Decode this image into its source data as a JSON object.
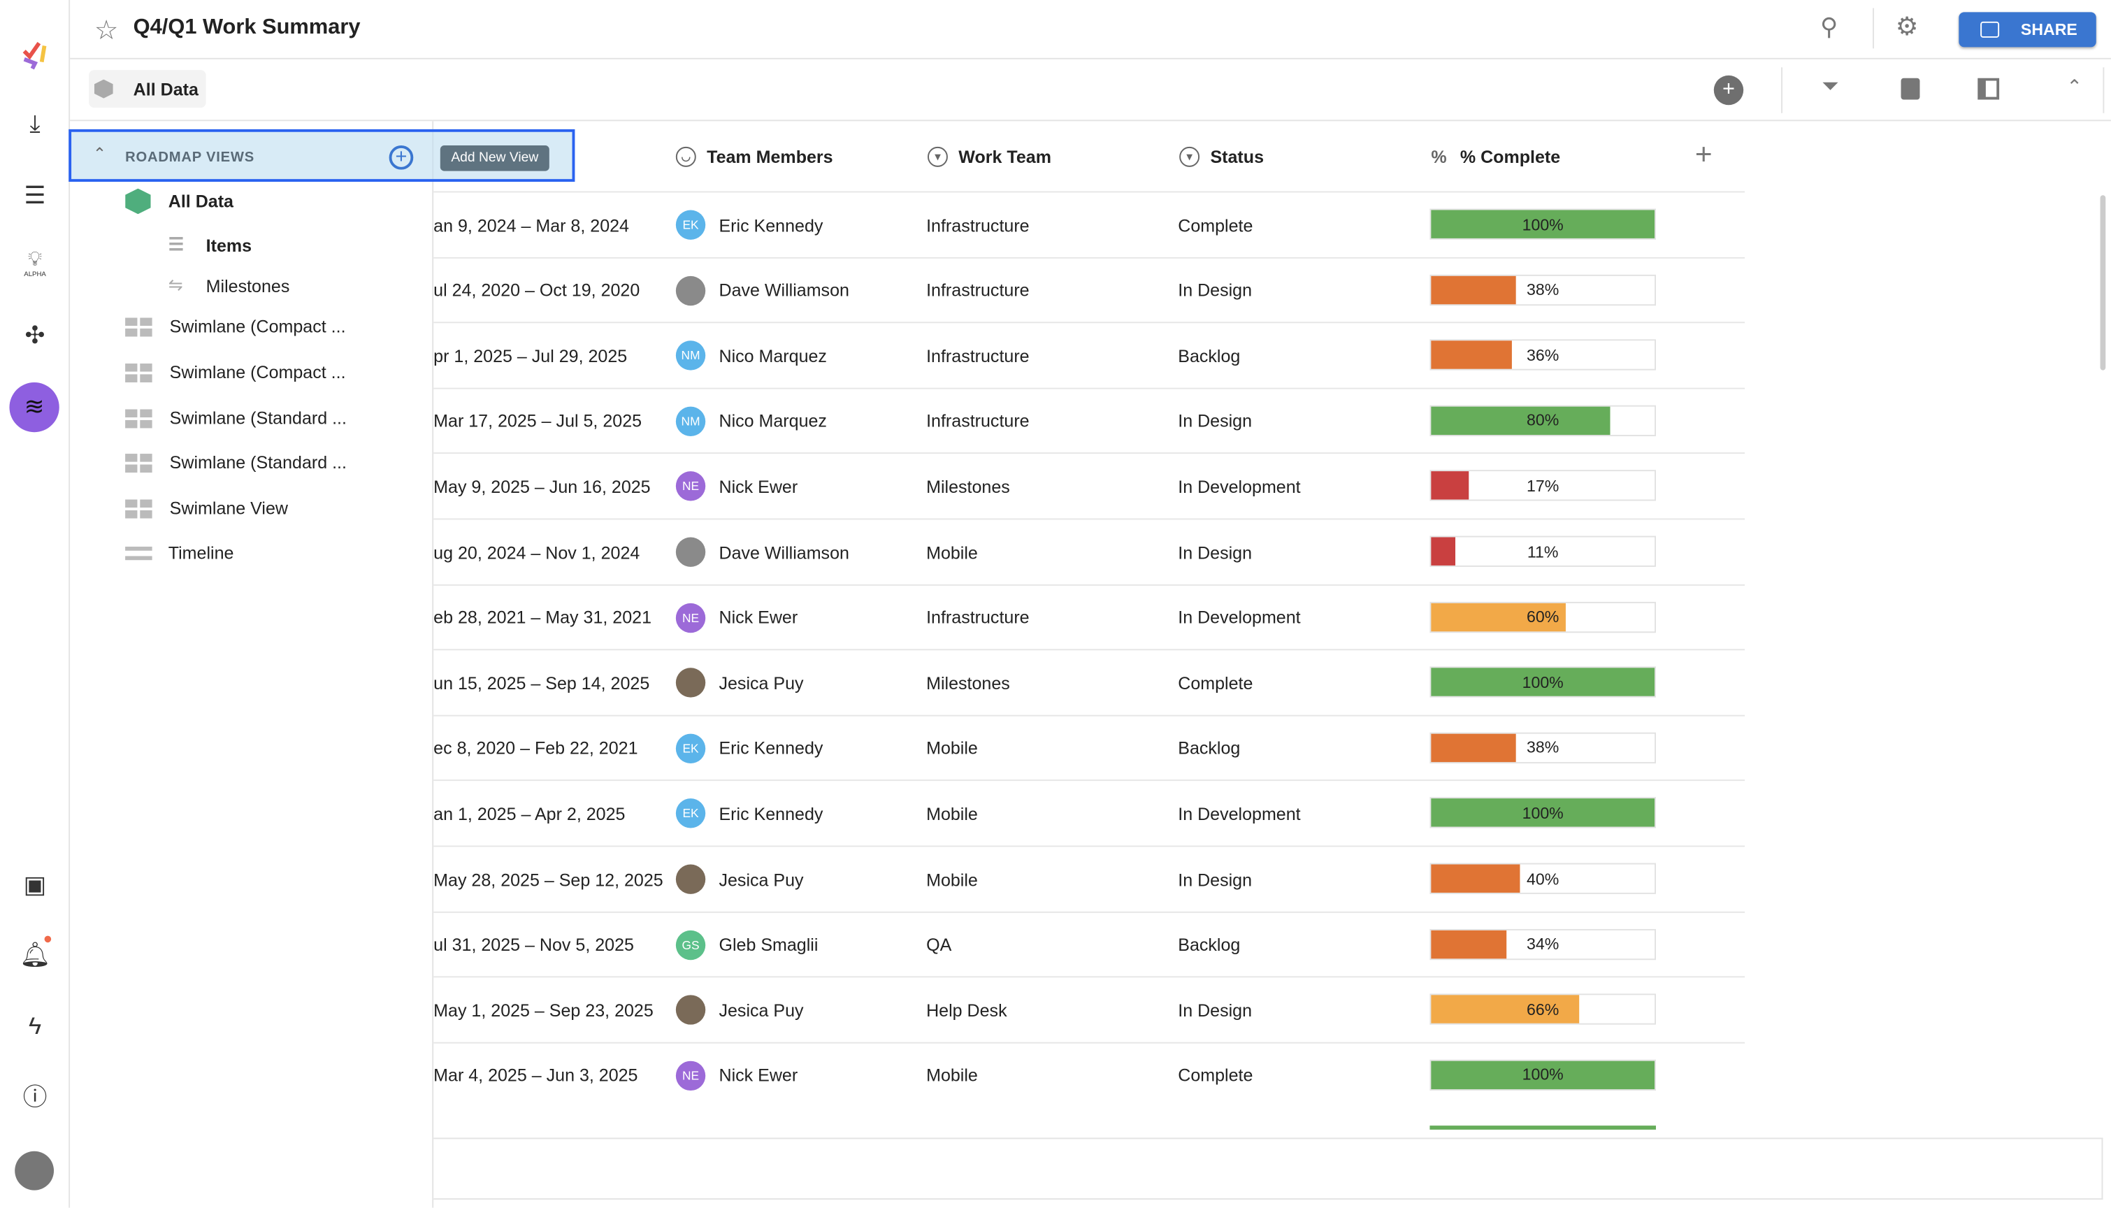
{
  "header": {
    "title": "Q4/Q1 Work Summary",
    "share_label": "SHARE"
  },
  "toolbar": {
    "view_chip": "All Data"
  },
  "rail": {
    "logo_badge": "ALPHA"
  },
  "panel": {
    "section_title": "ROADMAP VIEWS",
    "tooltip": "Add New View",
    "items": [
      {
        "label": "All Data",
        "icon": "cube-icon"
      },
      {
        "label": "Items",
        "icon": "lines-icon"
      },
      {
        "label": "Milestones",
        "icon": "signpost-icon"
      },
      {
        "label": "Swimlane (Compact ...",
        "icon": "grid-icon"
      },
      {
        "label": "Swimlane (Compact ...",
        "icon": "grid-icon"
      },
      {
        "label": "Swimlane (Standard ...",
        "icon": "grid-icon"
      },
      {
        "label": "Swimlane (Standard ...",
        "icon": "grid-icon"
      },
      {
        "label": "Swimlane View",
        "icon": "grid-icon"
      },
      {
        "label": "Timeline",
        "icon": "timeline-icon"
      }
    ]
  },
  "table": {
    "columns": {
      "team_members": "Team Members",
      "work_team": "Work Team",
      "status": "Status",
      "complete": "% Complete"
    },
    "rows": [
      {
        "dates": "an 9, 2024 – Mar 8, 2024",
        "member": "Eric Kennedy",
        "initials": "EK",
        "avatar": "#5bb4ea",
        "team": "Infrastructure",
        "status": "Complete",
        "pct": 100,
        "pct_label": "100%",
        "color": "#66ad5a"
      },
      {
        "dates": "ul 24, 2020 – Oct 19, 2020",
        "member": "Dave Williamson",
        "initials": "",
        "avatar": "#8a8a8a",
        "team": "Infrastructure",
        "status": "In Design",
        "pct": 38,
        "pct_label": "38%",
        "color": "#e07434"
      },
      {
        "dates": "pr 1, 2025 – Jul 29, 2025",
        "member": "Nico Marquez",
        "initials": "NM",
        "avatar": "#5bb4ea",
        "team": "Infrastructure",
        "status": "Backlog",
        "pct": 36,
        "pct_label": "36%",
        "color": "#e07434"
      },
      {
        "dates": "Mar 17, 2025 – Jul 5, 2025",
        "member": "Nico Marquez",
        "initials": "NM",
        "avatar": "#5bb4ea",
        "team": "Infrastructure",
        "status": "In Design",
        "pct": 80,
        "pct_label": "80%",
        "color": "#66ad5a"
      },
      {
        "dates": "May 9, 2025 – Jun 16, 2025",
        "member": "Nick Ewer",
        "initials": "NE",
        "avatar": "#9c6ad8",
        "team": "Milestones",
        "status": "In Development",
        "pct": 17,
        "pct_label": "17%",
        "color": "#c94040"
      },
      {
        "dates": "ug 20, 2024 – Nov 1, 2024",
        "member": "Dave Williamson",
        "initials": "",
        "avatar": "#8a8a8a",
        "team": "Mobile",
        "status": "In Design",
        "pct": 11,
        "pct_label": "11%",
        "color": "#c94040"
      },
      {
        "dates": "eb 28, 2021 – May 31, 2021",
        "member": "Nick Ewer",
        "initials": "NE",
        "avatar": "#9c6ad8",
        "team": "Infrastructure",
        "status": "In Development",
        "pct": 60,
        "pct_label": "60%",
        "color": "#f2a948"
      },
      {
        "dates": "un 15, 2025 – Sep 14, 2025",
        "member": "Jesica Puy",
        "initials": "",
        "avatar": "#7a6a58",
        "team": "Milestones",
        "status": "Complete",
        "pct": 100,
        "pct_label": "100%",
        "color": "#66ad5a"
      },
      {
        "dates": "ec 8, 2020 – Feb 22, 2021",
        "member": "Eric Kennedy",
        "initials": "EK",
        "avatar": "#5bb4ea",
        "team": "Mobile",
        "status": "Backlog",
        "pct": 38,
        "pct_label": "38%",
        "color": "#e07434"
      },
      {
        "dates": "an 1, 2025 – Apr 2, 2025",
        "member": "Eric Kennedy",
        "initials": "EK",
        "avatar": "#5bb4ea",
        "team": "Mobile",
        "status": "In Development",
        "pct": 100,
        "pct_label": "100%",
        "color": "#66ad5a"
      },
      {
        "dates": "May 28, 2025 – Sep 12, 2025",
        "member": "Jesica Puy",
        "initials": "",
        "avatar": "#7a6a58",
        "team": "Mobile",
        "status": "In Design",
        "pct": 40,
        "pct_label": "40%",
        "color": "#e07434"
      },
      {
        "dates": "ul 31, 2025 – Nov 5, 2025",
        "member": "Gleb Smaglii",
        "initials": "GS",
        "avatar": "#5cc08a",
        "team": "QA",
        "status": "Backlog",
        "pct": 34,
        "pct_label": "34%",
        "color": "#e07434"
      },
      {
        "dates": "May 1, 2025 – Sep 23, 2025",
        "member": "Jesica Puy",
        "initials": "",
        "avatar": "#7a6a58",
        "team": "Help Desk",
        "status": "In Design",
        "pct": 66,
        "pct_label": "66%",
        "color": "#f2a948"
      },
      {
        "dates": "Mar 4, 2025 – Jun 3, 2025",
        "member": "Nick Ewer",
        "initials": "NE",
        "avatar": "#9c6ad8",
        "team": "Mobile",
        "status": "Complete",
        "pct": 100,
        "pct_label": "100%",
        "color": "#66ad5a"
      }
    ]
  }
}
